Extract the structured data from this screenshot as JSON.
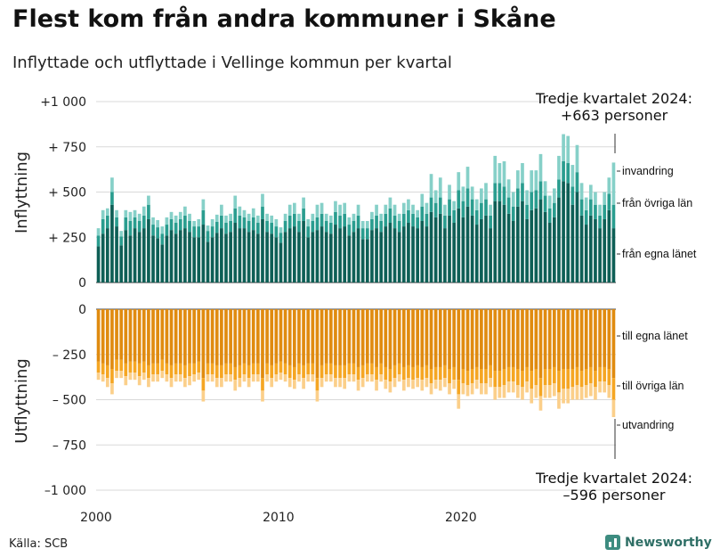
{
  "title": "Flest kom från andra kommuner i Skåne",
  "subtitle": "Inflyttade och utflyttade i Vellinge kommun per kvartal",
  "source": "Källa: SCB",
  "brand": "Newsworthy",
  "colors": {
    "in_own": "#0e5f56",
    "in_other": "#2a9d8f",
    "in_imm": "#86d0c8",
    "out_own": "#e08b10",
    "out_other": "#f5a623",
    "out_emi": "#fbcf8a",
    "grid": "#d9d9d9",
    "axis": "#333333"
  },
  "chart_data": {
    "type": "bar",
    "stacked": true,
    "start_year": 2000,
    "x_ticks": [
      "2000",
      "2010",
      "2020"
    ],
    "top": {
      "ylabel": "Inflyttning",
      "ylim": [
        0,
        1000
      ],
      "ticks": [
        {
          "v": 1000,
          "label": "+1 000"
        },
        {
          "v": 750,
          "label": "+ 750"
        },
        {
          "v": 500,
          "label": "+ 500"
        },
        {
          "v": 250,
          "label": "+ 250"
        },
        {
          "v": 0,
          "label": "0"
        }
      ],
      "series_labels": [
        "från egna länet",
        "från övriga län",
        "invandring"
      ],
      "series_right_labels": [
        "från egna länet",
        "från övriga län",
        "invandring"
      ],
      "own": [
        200,
        270,
        300,
        430,
        310,
        205,
        290,
        260,
        300,
        280,
        300,
        350,
        260,
        245,
        210,
        260,
        290,
        270,
        290,
        300,
        280,
        250,
        250,
        320,
        225,
        250,
        275,
        300,
        270,
        280,
        330,
        300,
        300,
        280,
        290,
        270,
        350,
        280,
        270,
        250,
        220,
        280,
        300,
        310,
        280,
        340,
        250,
        280,
        290,
        310,
        280,
        270,
        320,
        300,
        310,
        260,
        280,
        300,
        240,
        240,
        290,
        300,
        280,
        310,
        330,
        300,
        280,
        310,
        330,
        310,
        300,
        340,
        310,
        390,
        360,
        380,
        300,
        370,
        330,
        410,
        360,
        420,
        370,
        320,
        350,
        370,
        300,
        450,
        450,
        430,
        380,
        340,
        420,
        450,
        350,
        400,
        410,
        460,
        390,
        330,
        360,
        470,
        560,
        550,
        430,
        500,
        370,
        320,
        370,
        350,
        300,
        350,
        400,
        300
      ],
      "other": [
        60,
        80,
        70,
        70,
        50,
        50,
        70,
        80,
        60,
        60,
        70,
        80,
        60,
        60,
        60,
        60,
        60,
        60,
        60,
        70,
        60,
        60,
        60,
        80,
        60,
        60,
        60,
        70,
        60,
        60,
        80,
        70,
        60,
        60,
        70,
        60,
        70,
        60,
        60,
        60,
        55,
        60,
        70,
        70,
        60,
        70,
        60,
        60,
        70,
        70,
        60,
        60,
        70,
        70,
        70,
        60,
        60,
        70,
        60,
        60,
        60,
        70,
        60,
        70,
        80,
        70,
        60,
        70,
        70,
        70,
        60,
        80,
        70,
        80,
        80,
        90,
        70,
        90,
        70,
        100,
        90,
        100,
        90,
        80,
        90,
        90,
        70,
        100,
        100,
        100,
        90,
        80,
        100,
        100,
        80,
        100,
        100,
        100,
        90,
        80,
        80,
        100,
        110,
        110,
        100,
        110,
        90,
        80,
        90,
        80,
        70,
        80,
        90,
        130
      ],
      "imm": [
        40,
        50,
        40,
        80,
        40,
        30,
        40,
        50,
        40,
        40,
        50,
        50,
        40,
        40,
        40,
        40,
        40,
        40,
        40,
        50,
        40,
        30,
        40,
        60,
        30,
        40,
        40,
        60,
        40,
        40,
        70,
        50,
        40,
        40,
        50,
        40,
        70,
        40,
        40,
        40,
        30,
        40,
        60,
        60,
        40,
        60,
        40,
        40,
        70,
        60,
        40,
        40,
        60,
        60,
        60,
        40,
        40,
        60,
        40,
        40,
        40,
        60,
        40,
        50,
        60,
        60,
        40,
        60,
        60,
        50,
        40,
        70,
        60,
        130,
        70,
        110,
        60,
        80,
        50,
        100,
        80,
        120,
        70,
        60,
        80,
        90,
        60,
        150,
        110,
        140,
        100,
        80,
        100,
        110,
        80,
        120,
        110,
        150,
        80,
        70,
        80,
        130,
        150,
        150,
        120,
        150,
        90,
        70,
        80,
        70,
        60,
        70,
        90,
        233
      ]
    },
    "bottom": {
      "ylabel": "Utflyttning",
      "ylim": [
        -1000,
        0
      ],
      "ticks": [
        {
          "v": 0,
          "label": "0"
        },
        {
          "v": -250,
          "label": "– 250"
        },
        {
          "v": -500,
          "label": "– 500"
        },
        {
          "v": -750,
          "label": "– 750"
        },
        {
          "v": -1000,
          "label": "–1 000"
        }
      ],
      "series_right_labels": [
        "till egna länet",
        "till övriga län",
        "utvandring"
      ],
      "own": [
        290,
        300,
        310,
        330,
        280,
        280,
        300,
        290,
        290,
        300,
        290,
        310,
        300,
        300,
        280,
        300,
        310,
        300,
        300,
        310,
        300,
        300,
        290,
        380,
        300,
        300,
        310,
        310,
        300,
        300,
        320,
        310,
        300,
        310,
        300,
        300,
        380,
        300,
        310,
        300,
        290,
        300,
        310,
        320,
        300,
        310,
        300,
        300,
        380,
        310,
        300,
        300,
        310,
        310,
        310,
        300,
        300,
        320,
        310,
        300,
        300,
        320,
        300,
        320,
        330,
        310,
        300,
        320,
        310,
        320,
        310,
        320,
        310,
        330,
        320,
        320,
        310,
        330,
        320,
        390,
        330,
        340,
        330,
        320,
        330,
        330,
        310,
        340,
        340,
        330,
        320,
        320,
        330,
        340,
        320,
        340,
        330,
        380,
        330,
        330,
        320,
        340,
        330,
        330,
        330,
        320,
        340,
        330,
        320,
        340,
        320,
        320,
        330,
        380
      ],
      "other": [
        60,
        60,
        70,
        80,
        60,
        60,
        70,
        60,
        60,
        70,
        60,
        70,
        60,
        60,
        60,
        60,
        70,
        60,
        60,
        70,
        70,
        60,
        60,
        70,
        60,
        60,
        70,
        70,
        60,
        60,
        70,
        70,
        60,
        70,
        60,
        60,
        70,
        60,
        70,
        60,
        60,
        60,
        70,
        70,
        60,
        70,
        60,
        60,
        70,
        70,
        60,
        60,
        70,
        70,
        70,
        60,
        60,
        70,
        70,
        60,
        60,
        70,
        60,
        70,
        70,
        70,
        60,
        70,
        70,
        70,
        70,
        70,
        70,
        80,
        70,
        70,
        70,
        80,
        70,
        80,
        80,
        80,
        80,
        70,
        80,
        80,
        70,
        90,
        90,
        90,
        80,
        80,
        90,
        90,
        80,
        100,
        90,
        100,
        90,
        90,
        90,
        120,
        110,
        110,
        100,
        100,
        90,
        90,
        90,
        90,
        80,
        80,
        90,
        120
      ],
      "emi": [
        40,
        40,
        50,
        60,
        40,
        40,
        50,
        40,
        40,
        50,
        40,
        50,
        40,
        40,
        40,
        40,
        50,
        40,
        40,
        50,
        50,
        40,
        40,
        60,
        40,
        40,
        50,
        50,
        40,
        40,
        60,
        50,
        40,
        50,
        40,
        40,
        60,
        40,
        50,
        40,
        40,
        40,
        50,
        50,
        40,
        60,
        40,
        40,
        60,
        50,
        40,
        40,
        50,
        50,
        60,
        40,
        40,
        60,
        50,
        40,
        40,
        60,
        40,
        50,
        60,
        50,
        40,
        60,
        50,
        50,
        50,
        60,
        50,
        60,
        50,
        60,
        50,
        60,
        50,
        80,
        60,
        60,
        60,
        50,
        60,
        60,
        50,
        70,
        60,
        70,
        60,
        60,
        70,
        70,
        60,
        80,
        70,
        80,
        70,
        70,
        70,
        90,
        80,
        80,
        70,
        80,
        70,
        70,
        70,
        70,
        60,
        60,
        70,
        96
      ]
    },
    "annotation_top": [
      "Tredje kvartalet 2024:",
      "+663 personer"
    ],
    "annotation_bottom": [
      "Tredje kvartalet 2024:",
      "–596 personer"
    ]
  }
}
